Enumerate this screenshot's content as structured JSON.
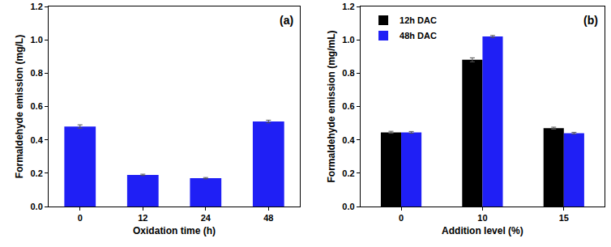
{
  "chart_data": [
    {
      "type": "bar",
      "annotation": "(a)",
      "x_label": "Oxidation time (h)",
      "y_label": "Formaldehyde emission (mg/L)",
      "categories": [
        "0",
        "12",
        "24",
        "48"
      ],
      "values": [
        0.48,
        0.19,
        0.17,
        0.51
      ],
      "errors": [
        0.01,
        0.004,
        0.004,
        0.008
      ],
      "color": "#1f1ff5",
      "ylim": [
        0,
        1.2
      ],
      "yticks": [
        {
          "value": 0,
          "label": "0.0"
        },
        0.2,
        0.4,
        0.6,
        0.8,
        {
          "value": 1,
          "label": "1.0"
        },
        1.2
      ],
      "grid": false
    },
    {
      "type": "bar",
      "annotation": "(b)",
      "x_label": "Addition level (%)",
      "y_label": "Formaldehyde emission (mg/mL)",
      "categories": [
        "0",
        "10",
        "15"
      ],
      "series": [
        {
          "name": "12h DAC",
          "color": "#000000",
          "values": [
            0.445,
            0.88,
            0.47
          ],
          "errors": [
            0.006,
            0.012,
            0.006
          ]
        },
        {
          "name": "48h DAC",
          "color": "#1f1ff5",
          "values": [
            0.445,
            1.02,
            0.44
          ],
          "errors": [
            0.005,
            0.006,
            0.005
          ]
        }
      ],
      "legend": "top left",
      "ylim": [
        0,
        1.2
      ],
      "yticks": [
        {
          "value": 0,
          "label": "0.0"
        },
        0.2,
        0.4,
        0.6,
        0.8,
        {
          "value": 1,
          "label": "1.0"
        },
        1.2
      ],
      "grid": false
    }
  ]
}
